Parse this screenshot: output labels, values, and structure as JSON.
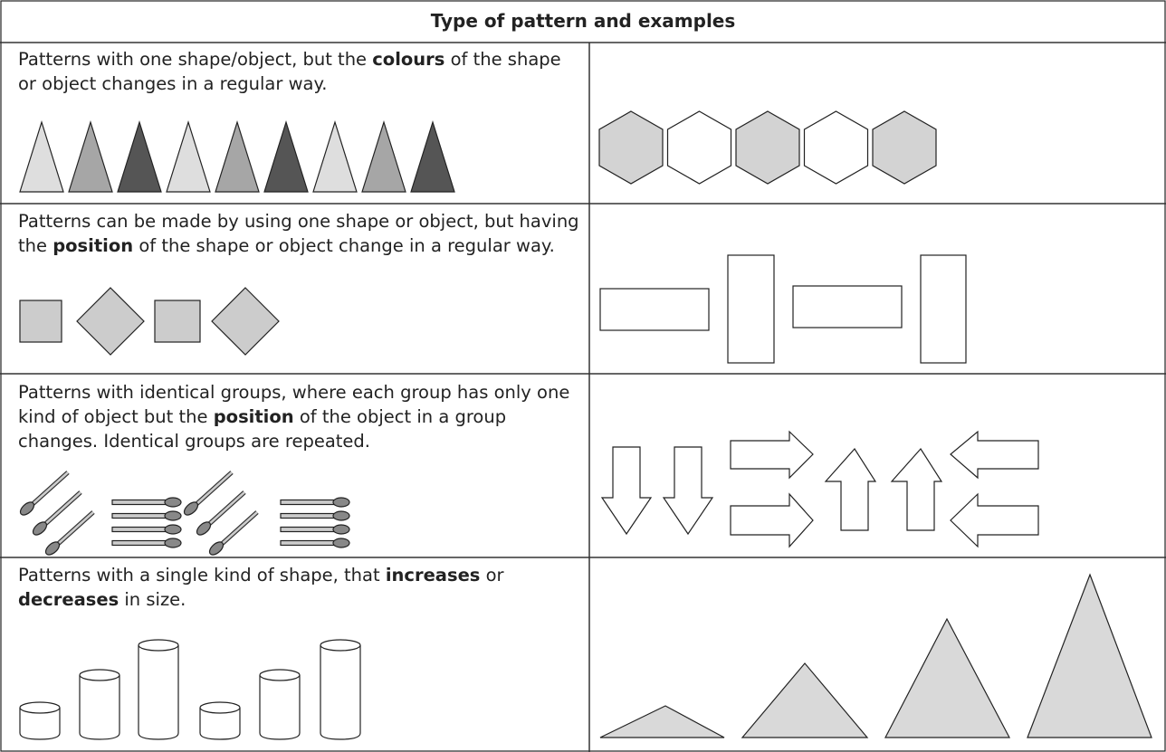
{
  "header": {
    "title": "Type of pattern and examples"
  },
  "table": {
    "rows": [
      [
        "Patterns with one shape/object, but the ",
        "colours",
        " of the shape or object changes in a regular way."
      ],
      [
        "Patterns can be made by using one shape or object, but having the ",
        "position",
        " of the shape or object change in a regular way."
      ],
      [
        "Patterns with identical groups, where each group has only one kind of object but the ",
        "position",
        " of the object in a group changes. Identical groups are repeated."
      ],
      [
        "Patterns with a single kind of shape, that ",
        "increases",
        " or ",
        "decreases",
        " in size."
      ]
    ]
  }
}
